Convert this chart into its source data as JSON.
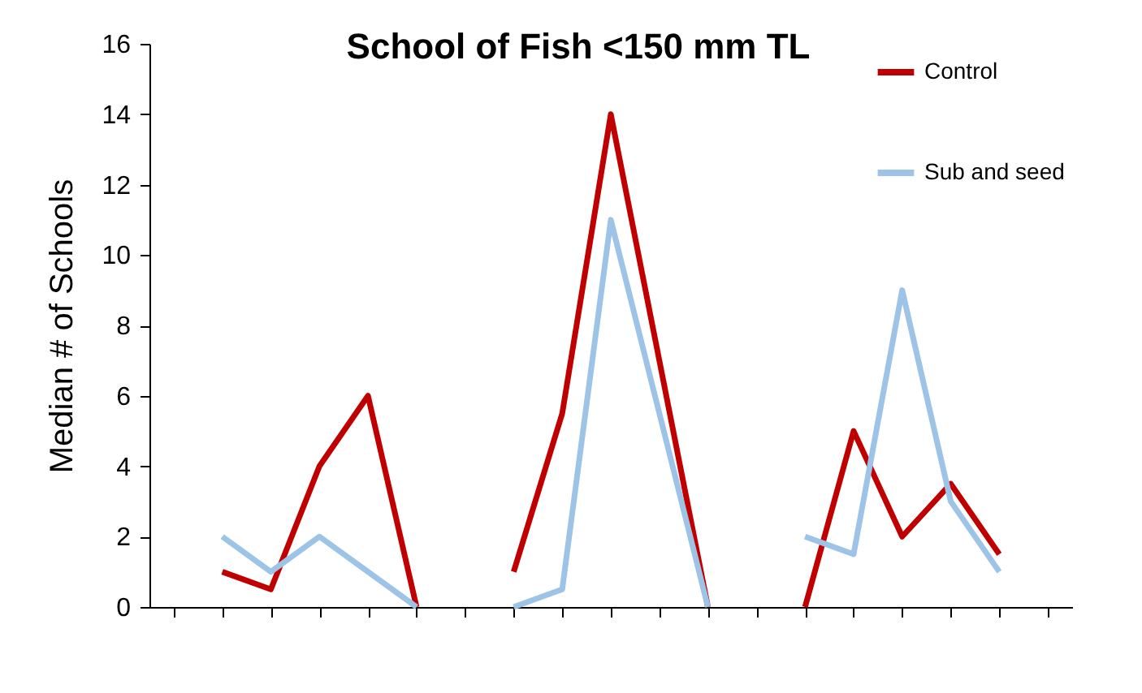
{
  "chart_data": {
    "type": "line",
    "title": "School of Fish <150 mm TL",
    "ylabel": "Median # of Schools",
    "categories": [
      null,
      null,
      null,
      null,
      null,
      null,
      null,
      null,
      null,
      null,
      null,
      null,
      null,
      null,
      null,
      null,
      null,
      null,
      null
    ],
    "series": [
      {
        "name": "Control",
        "color": "#c00000",
        "values": [
          null,
          1,
          0.5,
          4,
          6,
          0,
          null,
          1,
          5.5,
          14,
          7,
          0,
          null,
          0,
          5,
          2,
          3.5,
          1.5,
          null
        ]
      },
      {
        "name": "Sub and seed",
        "color": "#9dc3e6",
        "values": [
          null,
          2,
          1,
          2,
          1,
          0,
          null,
          0,
          0.5,
          11,
          5.5,
          0,
          null,
          2,
          1.5,
          9,
          3,
          1,
          null
        ]
      }
    ],
    "ylim": [
      0,
      16
    ],
    "yticks": [
      0,
      2,
      4,
      6,
      8,
      10,
      12,
      14,
      16
    ],
    "grid": false,
    "legend": "top right",
    "tick_labels": "y",
    "marker": "none",
    "line_style": "solid"
  }
}
